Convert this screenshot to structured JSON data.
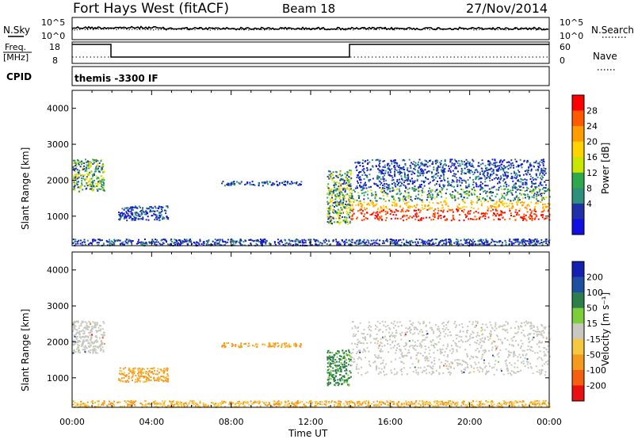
{
  "header": {
    "station": "Fort Hays West (fitACF)",
    "beam": "Beam 18",
    "date": "27/Nov/2014"
  },
  "noise_panel": {
    "left_label": "N.Sky",
    "right_label": "N.Search",
    "left_ticks": [
      "10^5",
      "10^0"
    ],
    "right_ticks": [
      "10^5",
      "10^0"
    ]
  },
  "freq_panel": {
    "left_label_1": "Freq.",
    "left_label_2": "[MHz]",
    "right_label": "Nave",
    "left_ticks": [
      "18",
      "8"
    ],
    "right_ticks": [
      "60",
      "0"
    ]
  },
  "cpid_panel": {
    "label": "CPID",
    "text": "themis -3300 IF"
  },
  "power_colorbar": {
    "label": "Power [dB]",
    "ticks": [
      "28",
      "24",
      "20",
      "16",
      "12",
      "8",
      "4"
    ],
    "colors": [
      "#ff0000",
      "#ff5a00",
      "#ff9c00",
      "#ffd200",
      "#c8e600",
      "#2ea84b",
      "#2e8f7a",
      "#2030a8",
      "#1010e0"
    ]
  },
  "velocity_colorbar": {
    "label": "Velocity [m s⁻¹]",
    "ticks": [
      "200",
      "100",
      "50",
      "15",
      "-15",
      "-50",
      "-100",
      "-200"
    ],
    "colors": [
      "#1520b0",
      "#1f4fa0",
      "#2c7e4a",
      "#7ccf3a",
      "#c8c8c0",
      "#f5c842",
      "#f59a20",
      "#f56010",
      "#e81010"
    ]
  },
  "x_axis": {
    "label": "Time UT",
    "ticks": [
      "00:00",
      "04:00",
      "08:00",
      "12:00",
      "16:00",
      "20:00",
      "00:00"
    ]
  },
  "y_axis": {
    "label": "Slant Range [km]",
    "ticks": [
      "4000",
      "3000",
      "2000",
      "1000"
    ]
  },
  "chart_data": [
    {
      "type": "heatmap",
      "title": "",
      "parameter": "Power [dB]",
      "xlabel": "",
      "ylabel": "Slant Range [km]",
      "xlim": [
        0,
        24
      ],
      "ylim": [
        180,
        4500
      ],
      "clim": [
        0,
        30
      ],
      "x_ticks": [
        "00:00",
        "04:00",
        "08:00",
        "12:00",
        "16:00",
        "20:00",
        "00:00"
      ],
      "y_ticks": [
        4000,
        3000,
        2000,
        1000
      ],
      "scatter_regions": [
        {
          "t0": 0.0,
          "t1": 1.6,
          "r0": 1700,
          "r1": 2600,
          "power": 14
        },
        {
          "t0": 2.3,
          "t1": 4.8,
          "r0": 900,
          "r1": 1300,
          "power": 6
        },
        {
          "t0": 7.5,
          "t1": 11.5,
          "r0": 1870,
          "r1": 1990,
          "power": 6
        },
        {
          "t0": 12.8,
          "t1": 14.0,
          "r0": 800,
          "r1": 2300,
          "power": 18
        },
        {
          "t0": 14.0,
          "t1": 24.0,
          "r0": 900,
          "r1": 1800,
          "power": 22
        },
        {
          "t0": 14.2,
          "t1": 23.8,
          "r0": 1800,
          "r1": 2600,
          "power": 6
        },
        {
          "t0": 0.0,
          "t1": 24.0,
          "r0": 200,
          "r1": 380,
          "power": 5
        }
      ]
    },
    {
      "type": "heatmap",
      "title": "",
      "parameter": "Velocity [m s-1]",
      "xlabel": "Time UT",
      "ylabel": "Slant Range [km]",
      "xlim": [
        0,
        24
      ],
      "ylim": [
        180,
        4500
      ],
      "clim": [
        -250,
        250
      ],
      "x_ticks": [
        "00:00",
        "04:00",
        "08:00",
        "12:00",
        "16:00",
        "20:00",
        "00:00"
      ],
      "y_ticks": [
        4000,
        3000,
        2000,
        1000
      ],
      "scatter_regions": [
        {
          "t0": 0.0,
          "t1": 1.6,
          "r0": 1700,
          "r1": 2600,
          "velocity": 0
        },
        {
          "t0": 2.3,
          "t1": 4.8,
          "r0": 900,
          "r1": 1300,
          "velocity": -60
        },
        {
          "t0": 7.5,
          "t1": 11.5,
          "r0": 1870,
          "r1": 1990,
          "velocity": -60
        },
        {
          "t0": 12.8,
          "t1": 14.0,
          "r0": 800,
          "r1": 1800,
          "velocity": 40
        },
        {
          "t0": 14.0,
          "t1": 24.0,
          "r0": 1100,
          "r1": 2600,
          "velocity": 0
        },
        {
          "t0": 0.0,
          "t1": 24.0,
          "r0": 200,
          "r1": 380,
          "velocity": -50
        }
      ]
    }
  ]
}
